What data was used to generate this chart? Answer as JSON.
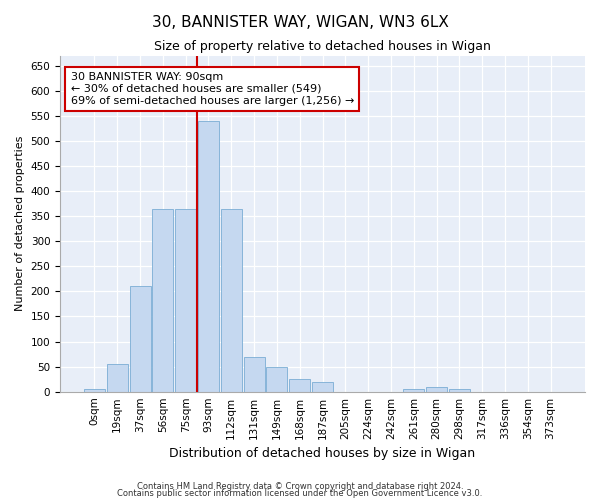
{
  "title1": "30, BANNISTER WAY, WIGAN, WN3 6LX",
  "title2": "Size of property relative to detached houses in Wigan",
  "xlabel": "Distribution of detached houses by size in Wigan",
  "ylabel": "Number of detached properties",
  "categories": [
    "0sqm",
    "19sqm",
    "37sqm",
    "56sqm",
    "75sqm",
    "93sqm",
    "112sqm",
    "131sqm",
    "149sqm",
    "168sqm",
    "187sqm",
    "205sqm",
    "224sqm",
    "242sqm",
    "261sqm",
    "280sqm",
    "298sqm",
    "317sqm",
    "336sqm",
    "354sqm",
    "373sqm"
  ],
  "bar_values": [
    5,
    55,
    210,
    365,
    365,
    540,
    365,
    70,
    50,
    25,
    20,
    0,
    0,
    0,
    5,
    10,
    5,
    0,
    0,
    0,
    0
  ],
  "bar_color": "#c5d8f0",
  "bar_edge_color": "#7aadd4",
  "property_line_color": "#cc0000",
  "property_line_index": 5.0,
  "annotation_text": "30 BANNISTER WAY: 90sqm\n← 30% of detached houses are smaller (549)\n69% of semi-detached houses are larger (1,256) →",
  "annotation_box_facecolor": "#ffffff",
  "annotation_box_edgecolor": "#cc0000",
  "ylim": [
    0,
    670
  ],
  "yticks": [
    0,
    50,
    100,
    150,
    200,
    250,
    300,
    350,
    400,
    450,
    500,
    550,
    600,
    650
  ],
  "background_color": "#e8eef8",
  "footer1": "Contains HM Land Registry data © Crown copyright and database right 2024.",
  "footer2": "Contains public sector information licensed under the Open Government Licence v3.0.",
  "title1_fontsize": 11,
  "title2_fontsize": 9,
  "xlabel_fontsize": 9,
  "ylabel_fontsize": 8,
  "tick_fontsize": 7.5,
  "footer_fontsize": 6,
  "annot_fontsize": 8
}
